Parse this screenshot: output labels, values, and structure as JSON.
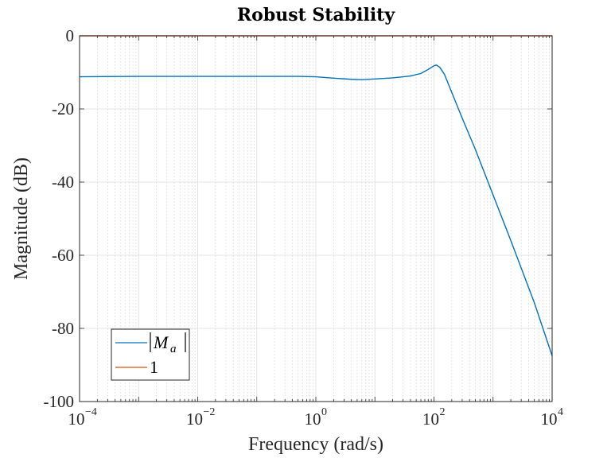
{
  "chart_data": {
    "type": "line",
    "title": "Robust Stability",
    "xlabel": "Frequency (rad/s)",
    "ylabel": "Magnitude (dB)",
    "xscale": "log",
    "xlim": [
      0.0001,
      10000
    ],
    "ylim": [
      -100,
      0
    ],
    "xticks": [
      {
        "base": "10",
        "exp": "−4",
        "value": 0.0001
      },
      {
        "base": "10",
        "exp": "−2",
        "value": 0.01
      },
      {
        "base": "10",
        "exp": "0",
        "value": 1
      },
      {
        "base": "10",
        "exp": "2",
        "value": 100
      },
      {
        "base": "10",
        "exp": "4",
        "value": 10000
      }
    ],
    "yticks": [
      "0",
      "-20",
      "-40",
      "-60",
      "-80",
      "-100"
    ],
    "ytick_values": [
      0,
      -20,
      -40,
      -60,
      -80,
      -100
    ],
    "grid": true,
    "legend_position": "bottom-left",
    "series": [
      {
        "name": "|Ma|",
        "legend_main": "M",
        "legend_sub": "a",
        "color": "#0072BD",
        "x": [
          0.0001,
          0.001,
          0.01,
          0.1,
          0.5,
          1,
          2,
          4,
          6,
          10,
          20,
          40,
          60,
          80,
          100,
          110,
          125,
          150,
          200,
          300,
          500,
          1000,
          2000,
          5000,
          10000
        ],
        "y": [
          -11.2,
          -11.1,
          -11.1,
          -11.1,
          -11.1,
          -11.2,
          -11.6,
          -11.9,
          -12.0,
          -11.8,
          -11.5,
          -11.0,
          -10.3,
          -9.2,
          -8.2,
          -8.0,
          -8.6,
          -10.5,
          -15.5,
          -22.5,
          -31.0,
          -43.5,
          -56.0,
          -73.0,
          -87.5
        ]
      },
      {
        "name": "1",
        "legend_main": "1",
        "color": "#D95319",
        "x": [
          0.0001,
          10000
        ],
        "y": [
          0,
          0
        ]
      }
    ]
  }
}
